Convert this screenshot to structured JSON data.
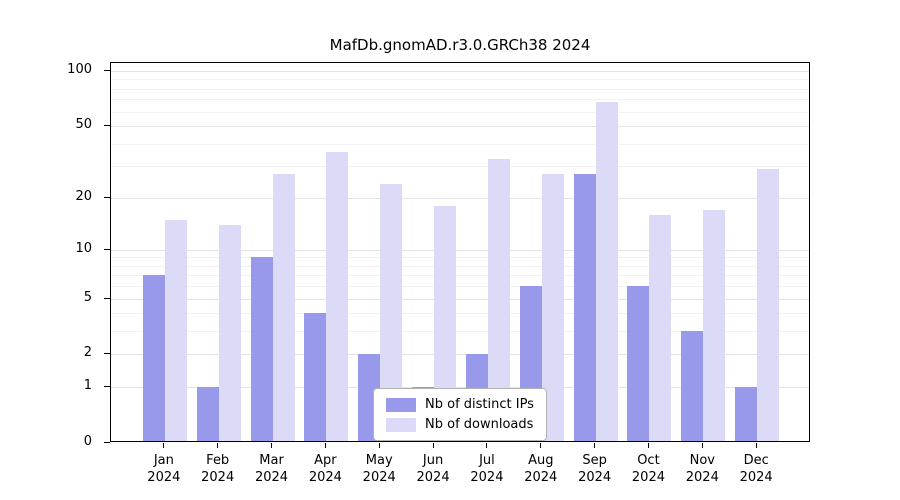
{
  "title": "MafDb.gnomAD.r3.0.GRCh38 2024",
  "chart_data": {
    "type": "bar",
    "title": "MafDb.gnomAD.r3.0.GRCh38 2024",
    "scale": "log1p",
    "grid": true,
    "legend_position": "bottom-center",
    "year": "2024",
    "categories": [
      "Jan",
      "Feb",
      "Mar",
      "Apr",
      "May",
      "Jun",
      "Jul",
      "Aug",
      "Sep",
      "Oct",
      "Nov",
      "Dec"
    ],
    "series": [
      {
        "name": "Nb of distinct IPs",
        "color": "#9999eb",
        "values": [
          7,
          1,
          9,
          4,
          2,
          1,
          2,
          6,
          27,
          6,
          3,
          1
        ]
      },
      {
        "name": "Nb of downloads",
        "color": "#dbdbf8",
        "values": [
          15,
          14,
          27,
          36,
          24,
          18,
          33,
          27,
          68,
          16,
          17,
          29
        ]
      }
    ],
    "yticks": [
      0,
      1,
      2,
      5,
      10,
      20,
      50,
      100
    ],
    "minor_gridlines": [
      3,
      4,
      6,
      7,
      8,
      9,
      30,
      40,
      60,
      70,
      80,
      90
    ],
    "ylim": [
      0,
      110
    ]
  },
  "colors": {
    "ips_bar": "#9999eb",
    "downloads_bar": "#dbdbf8",
    "grid_major": "#e3e3e3",
    "grid_minor": "#f2f2f2",
    "axis": "#000000",
    "legend_border": "#b3b3b3",
    "background": "#ffffff"
  }
}
